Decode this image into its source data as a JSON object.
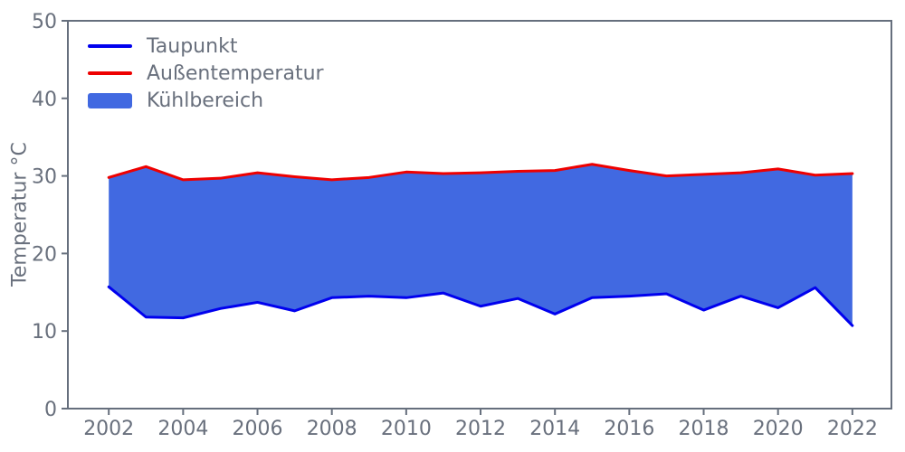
{
  "figure": {
    "background": "#ffffff"
  },
  "chart_data": {
    "type": "area",
    "title": "",
    "xlabel": "",
    "ylabel": "Temperatur °C",
    "x": [
      2002,
      2003,
      2004,
      2005,
      2006,
      2007,
      2008,
      2009,
      2010,
      2011,
      2012,
      2013,
      2014,
      2015,
      2016,
      2017,
      2018,
      2019,
      2020,
      2021,
      2022
    ],
    "series": [
      {
        "name": "Taupunkt",
        "color": "#0000EE",
        "values": [
          15.7,
          11.8,
          11.7,
          12.9,
          13.7,
          12.6,
          14.3,
          14.5,
          14.3,
          14.9,
          13.2,
          14.2,
          12.2,
          14.3,
          14.5,
          14.8,
          12.7,
          14.5,
          13.0,
          15.6,
          10.7
        ]
      },
      {
        "name": "Außentemperatur",
        "color": "#EE0000",
        "values": [
          29.8,
          31.2,
          29.5,
          29.7,
          30.4,
          29.9,
          29.5,
          29.8,
          30.5,
          30.3,
          30.4,
          30.6,
          30.7,
          31.5,
          30.7,
          30.0,
          30.2,
          30.4,
          30.9,
          30.1,
          30.3
        ]
      }
    ],
    "band": {
      "name": "Kühlbereich",
      "color": "#4169E1",
      "between": [
        "Taupunkt",
        "Außentemperatur"
      ]
    },
    "legend": {
      "position": "upper-left",
      "entries": [
        "Taupunkt",
        "Außentemperatur",
        "Kühlbereich"
      ]
    },
    "xlim": [
      2000.9,
      2023.05
    ],
    "ylim": [
      0,
      50
    ],
    "xticks": [
      2002,
      2004,
      2006,
      2008,
      2010,
      2012,
      2014,
      2016,
      2018,
      2020,
      2022
    ],
    "yticks": [
      0,
      10,
      20,
      30,
      40,
      50
    ],
    "grid": false,
    "axis_color": "#666F7D",
    "text_color": "#69707D"
  }
}
